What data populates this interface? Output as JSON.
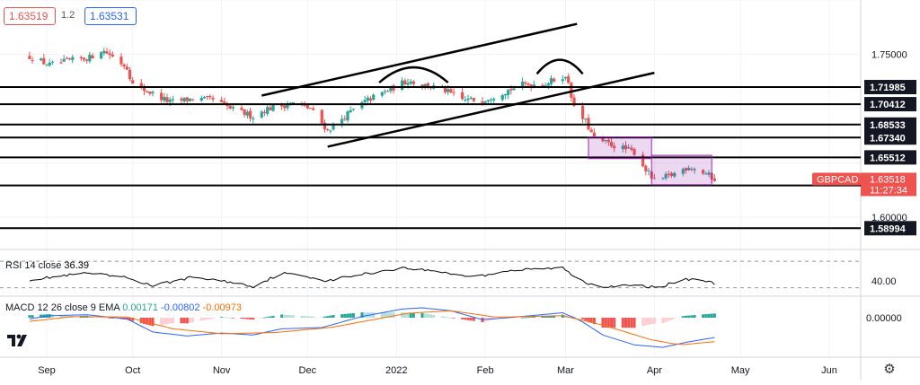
{
  "header": {
    "bid": "1.63519",
    "spread": "1.2",
    "ask": "1.63531",
    "colors": {
      "bid": "#ef5350",
      "ask": "#2962ff"
    }
  },
  "icons": {
    "logo": "tradingview-logo-icon",
    "settings": "gear-icon"
  },
  "chart_data": [
    {
      "type": "candlestick",
      "symbol": "GBPCAD",
      "last_price": "1.63518",
      "countdown": "11:27:34",
      "x_tick_labels": [
        "Sep",
        "Oct",
        "Nov",
        "Dec",
        "2022",
        "Feb",
        "Mar",
        "Apr",
        "May",
        "Jun"
      ],
      "y_tick_labels": [
        "1.75000",
        "1.60000"
      ],
      "ylim": [
        1.572,
        1.8
      ],
      "grid": true,
      "colors": {
        "up": "#26a69a",
        "down": "#ef5350",
        "level": "#000000",
        "box": "#9c27b0"
      },
      "horizontal_levels": [
        "1.71985",
        "1.70412",
        "1.68533",
        "1.67340",
        "1.65512",
        "1.62933",
        "1.58994"
      ],
      "trend_lines": [
        {
          "from": [
            "2021-11-15",
            1.712
          ],
          "to": [
            "2022-03-05",
            1.778
          ]
        },
        {
          "from": [
            "2021-12-08",
            1.665
          ],
          "to": [
            "2022-04-01",
            1.733
          ]
        }
      ],
      "arcs": [
        {
          "from": [
            "2021-12-26",
            1.724
          ],
          "peak": [
            "2022-01-07",
            1.738
          ],
          "to": [
            "2022-01-19",
            1.724
          ]
        },
        {
          "from": [
            "2022-02-19",
            1.732
          ],
          "peak": [
            "2022-02-27",
            1.745
          ],
          "to": [
            "2022-03-07",
            1.732
          ]
        }
      ],
      "boxes": [
        {
          "from": [
            "2022-03-09",
            1.674
          ],
          "to": [
            "2022-03-31",
            1.654
          ]
        },
        {
          "from": [
            "2022-03-31",
            1.657
          ],
          "to": [
            "2022-04-21",
            1.63
          ]
        }
      ],
      "anchors": [
        [
          "2021-08-26",
          1.748
        ],
        [
          "2021-09-02",
          1.74
        ],
        [
          "2021-09-09",
          1.744
        ],
        [
          "2021-09-16",
          1.747
        ],
        [
          "2021-09-20",
          1.754
        ],
        [
          "2021-09-23",
          1.75
        ],
        [
          "2021-09-29",
          1.738
        ],
        [
          "2021-10-01",
          1.722
        ],
        [
          "2021-10-07",
          1.715
        ],
        [
          "2021-10-14",
          1.706
        ],
        [
          "2021-10-22",
          1.709
        ],
        [
          "2021-10-29",
          1.708
        ],
        [
          "2021-11-05",
          1.699
        ],
        [
          "2021-11-12",
          1.693
        ],
        [
          "2021-11-17",
          1.7
        ],
        [
          "2021-11-26",
          1.705
        ],
        [
          "2021-12-02",
          1.7
        ],
        [
          "2021-12-08",
          1.68
        ],
        [
          "2021-12-15",
          1.695
        ],
        [
          "2021-12-22",
          1.708
        ],
        [
          "2021-12-30",
          1.718
        ],
        [
          "2022-01-05",
          1.726
        ],
        [
          "2022-01-10",
          1.722
        ],
        [
          "2022-01-17",
          1.718
        ],
        [
          "2022-01-24",
          1.708
        ],
        [
          "2022-01-31",
          1.708
        ],
        [
          "2022-02-07",
          1.715
        ],
        [
          "2022-02-14",
          1.722
        ],
        [
          "2022-02-22",
          1.723
        ],
        [
          "2022-02-28",
          1.73
        ],
        [
          "2022-03-02",
          1.725
        ],
        [
          "2022-03-04",
          1.7
        ],
        [
          "2022-03-08",
          1.688
        ],
        [
          "2022-03-11",
          1.672
        ],
        [
          "2022-03-18",
          1.666
        ],
        [
          "2022-03-25",
          1.66
        ],
        [
          "2022-03-29",
          1.644
        ],
        [
          "2022-04-01",
          1.633
        ],
        [
          "2022-04-07",
          1.639
        ],
        [
          "2022-04-13",
          1.647
        ],
        [
          "2022-04-19",
          1.64
        ],
        [
          "2022-04-22",
          1.6352
        ]
      ]
    },
    {
      "type": "line",
      "name": "RSI 14 close",
      "value": "36.39",
      "tick_labels": [
        "40.00"
      ],
      "guide_levels": [
        70,
        30
      ],
      "ylim": [
        20,
        85
      ],
      "anchors": [
        [
          "2021-08-26",
          42
        ],
        [
          "2021-09-15",
          52
        ],
        [
          "2021-09-29",
          45
        ],
        [
          "2021-10-08",
          33
        ],
        [
          "2021-10-22",
          46
        ],
        [
          "2021-11-05",
          38
        ],
        [
          "2021-11-12",
          32
        ],
        [
          "2021-11-22",
          52
        ],
        [
          "2021-12-01",
          47
        ],
        [
          "2021-12-08",
          40
        ],
        [
          "2021-12-14",
          46
        ],
        [
          "2021-12-24",
          53
        ],
        [
          "2022-01-03",
          60
        ],
        [
          "2022-01-10",
          57
        ],
        [
          "2022-01-17",
          54
        ],
        [
          "2022-01-24",
          48
        ],
        [
          "2022-01-31",
          48
        ],
        [
          "2022-02-07",
          55
        ],
        [
          "2022-02-18",
          58
        ],
        [
          "2022-02-28",
          60
        ],
        [
          "2022-03-03",
          50
        ],
        [
          "2022-03-08",
          38
        ],
        [
          "2022-03-14",
          32
        ],
        [
          "2022-03-25",
          33
        ],
        [
          "2022-04-01",
          31
        ],
        [
          "2022-04-05",
          34
        ],
        [
          "2022-04-11",
          42
        ],
        [
          "2022-04-16",
          44
        ],
        [
          "2022-04-22",
          36
        ]
      ],
      "color": "#000000"
    },
    {
      "type": "macd",
      "name": "MACD 12 26 close 9 EMA",
      "values": [
        "0.00171",
        "-0.00802",
        "-0.00973"
      ],
      "tick_labels": [
        "0.00000"
      ],
      "ylim": [
        -0.016,
        0.008
      ],
      "colors": {
        "macd": "#2962ff",
        "signal": "#ff6d00",
        "hist_pos": "#26a69a",
        "hist_pos_light": "#b2dfdb",
        "hist_neg": "#ef5350",
        "hist_neg_light": "#ffcdd2"
      },
      "macd_anchors": [
        [
          "2021-08-26",
          -0.0005
        ],
        [
          "2021-09-02",
          0.0008
        ],
        [
          "2021-09-15",
          0.0012
        ],
        [
          "2021-09-29",
          -0.0005
        ],
        [
          "2021-10-08",
          -0.0058
        ],
        [
          "2021-10-20",
          -0.0074
        ],
        [
          "2021-11-01",
          -0.0062
        ],
        [
          "2021-11-12",
          -0.007
        ],
        [
          "2021-11-22",
          -0.0045
        ],
        [
          "2021-12-06",
          -0.004
        ],
        [
          "2021-12-20",
          0.0005
        ],
        [
          "2022-01-03",
          0.0035
        ],
        [
          "2022-01-10",
          0.004
        ],
        [
          "2022-01-20",
          0.0028
        ],
        [
          "2022-01-31",
          -0.0008
        ],
        [
          "2022-02-14",
          0.0005
        ],
        [
          "2022-02-28",
          0.002
        ],
        [
          "2022-03-06",
          -0.001
        ],
        [
          "2022-03-14",
          -0.007
        ],
        [
          "2022-03-25",
          -0.011
        ],
        [
          "2022-04-04",
          -0.012
        ],
        [
          "2022-04-12",
          -0.01
        ],
        [
          "2022-04-22",
          -0.008
        ]
      ],
      "signal_anchors": [
        [
          "2021-08-26",
          -0.0015
        ],
        [
          "2021-09-10",
          0.0004
        ],
        [
          "2021-09-29",
          0.0003
        ],
        [
          "2021-10-15",
          -0.0045
        ],
        [
          "2021-11-01",
          -0.0065
        ],
        [
          "2021-11-20",
          -0.006
        ],
        [
          "2021-12-10",
          -0.0038
        ],
        [
          "2022-01-05",
          0.0018
        ],
        [
          "2022-01-20",
          0.0028
        ],
        [
          "2022-02-05",
          0.0002
        ],
        [
          "2022-02-28",
          0.0008
        ],
        [
          "2022-03-14",
          -0.003
        ],
        [
          "2022-03-31",
          -0.009
        ],
        [
          "2022-04-10",
          -0.011
        ],
        [
          "2022-04-22",
          -0.0097
        ]
      ]
    }
  ]
}
